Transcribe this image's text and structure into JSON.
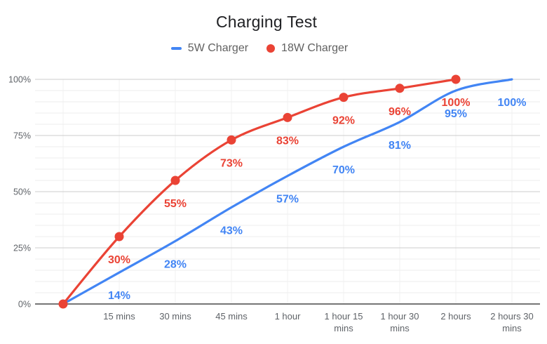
{
  "title": "Charging Test",
  "legend": [
    {
      "label": "5W Charger",
      "color": "#4285f4",
      "marker": "line"
    },
    {
      "label": "18W Charger",
      "color": "#ea4335",
      "marker": "dot"
    }
  ],
  "colors": {
    "blue_series": "#4285f4",
    "red_series": "#ea4335",
    "axis_text": "#5f6368",
    "baseline": "#757575",
    "major_grid": "#cccccc",
    "minor_grid": "#ededed",
    "vertical_grid": "#f2f2f2",
    "title_text": "#202124",
    "legend_text": "#616161"
  },
  "chart_data": {
    "type": "line",
    "title": "Charging Test",
    "xlabel": "",
    "ylabel": "",
    "ylim": [
      0,
      100
    ],
    "y_major_step": 25,
    "y_minor_step": 5,
    "grid": "on",
    "legend_position": "top-center",
    "y_tick_labels": [
      "0%",
      "25%",
      "50%",
      "75%",
      "100%"
    ],
    "x_tick_labels": [
      [],
      [
        "15 mins"
      ],
      [
        "30 mins"
      ],
      [
        "45 mins"
      ],
      [
        "1 hour"
      ],
      [
        "1 hour 15",
        "mins"
      ],
      [
        "1 hour 30",
        "mins"
      ],
      [
        "2 hours"
      ],
      [
        "2 hours 30",
        "mins"
      ]
    ],
    "series": [
      {
        "name": "5W Charger",
        "color": "#4285f4",
        "markers": false,
        "smooth": true,
        "values": [
          0,
          14,
          28,
          43,
          57,
          70,
          81,
          95,
          100
        ],
        "data_labels": [
          "",
          "14%",
          "28%",
          "43%",
          "57%",
          "70%",
          "81%",
          "95%",
          "100%"
        ]
      },
      {
        "name": "18W Charger",
        "color": "#ea4335",
        "markers": true,
        "smooth": true,
        "values": [
          0,
          30,
          55,
          73,
          83,
          92,
          96,
          100,
          null
        ],
        "data_labels": [
          "",
          "30%",
          "55%",
          "73%",
          "83%",
          "92%",
          "96%",
          "100%",
          ""
        ]
      }
    ]
  }
}
